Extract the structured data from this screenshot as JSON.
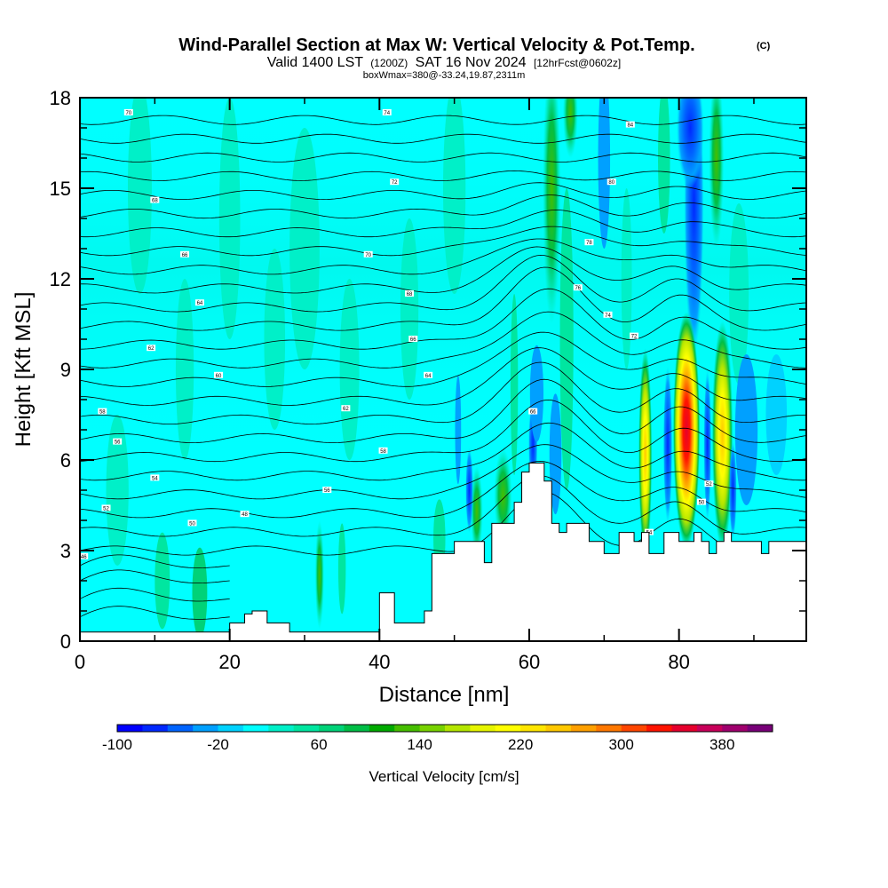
{
  "header": {
    "title": "Wind-Parallel Section at Max W: Vertical Velocity & Pot.Temp.",
    "copyright": "(C)",
    "valid_prefix": "Valid 1400 LST",
    "valid_utc": "(1200Z)",
    "valid_date": "SAT 16 Nov 2024",
    "forecast_info": "[12hrFcst@0602z]",
    "box_info": "boxWmax=380@-33.24,19.87,2311m"
  },
  "chart_data": {
    "type": "heatmap",
    "xlabel": "Distance [nm]",
    "ylabel": "Height [Kft MSL]",
    "xlim": [
      0,
      97
    ],
    "ylim": [
      0,
      18
    ],
    "x_ticks": [
      "0",
      "20",
      "40",
      "60",
      "80"
    ],
    "x_tick_values": [
      0,
      20,
      40,
      60,
      80
    ],
    "y_ticks": [
      "0",
      "3",
      "6",
      "9",
      "12",
      "15",
      "18"
    ],
    "y_tick_values": [
      0,
      3,
      6,
      9,
      12,
      15,
      18
    ],
    "colorbar": {
      "label": "Vertical Velocity [cm/s]",
      "tick_labels": [
        "-100",
        "-20",
        "60",
        "140",
        "220",
        "300",
        "380"
      ],
      "tick_values": [
        -100,
        -20,
        60,
        140,
        220,
        300,
        380
      ],
      "min": -100,
      "max": 400,
      "step": 20,
      "colors": [
        "#0000ff",
        "#0028ff",
        "#0064ff",
        "#00a0ff",
        "#00d2ff",
        "#00ffff",
        "#00f0c8",
        "#00e6a0",
        "#00d278",
        "#00be46",
        "#00aa00",
        "#46be00",
        "#78d200",
        "#b4e600",
        "#e6f500",
        "#ffff00",
        "#ffe600",
        "#ffc800",
        "#ffa000",
        "#ff7800",
        "#ff4600",
        "#ff1400",
        "#e6002d",
        "#c8005a",
        "#a0006e",
        "#780078"
      ]
    },
    "terrain": [
      [
        0,
        0.3
      ],
      [
        20,
        0.3
      ],
      [
        20,
        0.6
      ],
      [
        22,
        0.6
      ],
      [
        22,
        0.9
      ],
      [
        23,
        0.9
      ],
      [
        23,
        1.0
      ],
      [
        25,
        1.0
      ],
      [
        25,
        0.6
      ],
      [
        28,
        0.6
      ],
      [
        28,
        0.3
      ],
      [
        40,
        0.3
      ],
      [
        40,
        1.6
      ],
      [
        42,
        1.6
      ],
      [
        42,
        0.6
      ],
      [
        46,
        0.6
      ],
      [
        46,
        1.0
      ],
      [
        47,
        1.0
      ],
      [
        47,
        2.9
      ],
      [
        50,
        2.9
      ],
      [
        50,
        3.3
      ],
      [
        54,
        3.3
      ],
      [
        54,
        2.6
      ],
      [
        55,
        2.6
      ],
      [
        55,
        3.9
      ],
      [
        58,
        3.9
      ],
      [
        58,
        4.6
      ],
      [
        59,
        4.6
      ],
      [
        59,
        5.6
      ],
      [
        60,
        5.6
      ],
      [
        60,
        5.9
      ],
      [
        62,
        5.9
      ],
      [
        62,
        5.3
      ],
      [
        63,
        5.3
      ],
      [
        63,
        3.9
      ],
      [
        64,
        3.9
      ],
      [
        64,
        3.6
      ],
      [
        65,
        3.6
      ],
      [
        65,
        3.9
      ],
      [
        68,
        3.9
      ],
      [
        68,
        3.3
      ],
      [
        70,
        3.3
      ],
      [
        70,
        2.9
      ],
      [
        72,
        2.9
      ],
      [
        72,
        3.6
      ],
      [
        74,
        3.6
      ],
      [
        74,
        3.3
      ],
      [
        75,
        3.3
      ],
      [
        75,
        3.6
      ],
      [
        76,
        3.6
      ],
      [
        76,
        2.9
      ],
      [
        78,
        2.9
      ],
      [
        78,
        3.6
      ],
      [
        80,
        3.6
      ],
      [
        80,
        3.3
      ],
      [
        82,
        3.3
      ],
      [
        82,
        3.6
      ],
      [
        83,
        3.6
      ],
      [
        83,
        3.3
      ],
      [
        84,
        3.3
      ],
      [
        84,
        2.9
      ],
      [
        85,
        2.9
      ],
      [
        85,
        3.3
      ],
      [
        86,
        3.3
      ],
      [
        86,
        3.6
      ],
      [
        87,
        3.6
      ],
      [
        87,
        3.3
      ],
      [
        91,
        3.3
      ],
      [
        91,
        2.9
      ],
      [
        92,
        2.9
      ],
      [
        92,
        3.3
      ],
      [
        97,
        3.3
      ]
    ],
    "isentrope_labels": [
      {
        "text": "70",
        "x": 6.5,
        "y": 17.5
      },
      {
        "text": "68",
        "x": 10,
        "y": 14.6
      },
      {
        "text": "66",
        "x": 14,
        "y": 12.8
      },
      {
        "text": "64",
        "x": 16,
        "y": 11.2
      },
      {
        "text": "62",
        "x": 9.5,
        "y": 9.7
      },
      {
        "text": "60",
        "x": 18.5,
        "y": 8.8
      },
      {
        "text": "58",
        "x": 3,
        "y": 7.6
      },
      {
        "text": "56",
        "x": 5,
        "y": 6.6
      },
      {
        "text": "54",
        "x": 10,
        "y": 5.4
      },
      {
        "text": "52",
        "x": 3.5,
        "y": 4.4
      },
      {
        "text": "50",
        "x": 15,
        "y": 3.9
      },
      {
        "text": "48",
        "x": 22,
        "y": 4.2
      },
      {
        "text": "46",
        "x": 0.5,
        "y": 2.8
      },
      {
        "text": "74",
        "x": 41,
        "y": 17.5
      },
      {
        "text": "72",
        "x": 42,
        "y": 15.2
      },
      {
        "text": "70",
        "x": 38.5,
        "y": 12.8
      },
      {
        "text": "68",
        "x": 44,
        "y": 11.5
      },
      {
        "text": "66",
        "x": 44.5,
        "y": 10.0
      },
      {
        "text": "64",
        "x": 46.5,
        "y": 8.8
      },
      {
        "text": "62",
        "x": 35.5,
        "y": 7.7
      },
      {
        "text": "58",
        "x": 40.5,
        "y": 6.3
      },
      {
        "text": "56",
        "x": 33,
        "y": 5.0
      },
      {
        "text": "84",
        "x": 73.5,
        "y": 17.1
      },
      {
        "text": "80",
        "x": 71,
        "y": 15.2
      },
      {
        "text": "78",
        "x": 68,
        "y": 13.2
      },
      {
        "text": "76",
        "x": 66.5,
        "y": 11.7
      },
      {
        "text": "74",
        "x": 70.5,
        "y": 10.8
      },
      {
        "text": "72",
        "x": 74,
        "y": 10.1
      },
      {
        "text": "66",
        "x": 60.5,
        "y": 7.6
      },
      {
        "text": "52",
        "x": 84,
        "y": 5.2
      },
      {
        "text": "50",
        "x": 83,
        "y": 4.6
      },
      {
        "text": "54",
        "x": 76,
        "y": 3.6
      }
    ]
  }
}
